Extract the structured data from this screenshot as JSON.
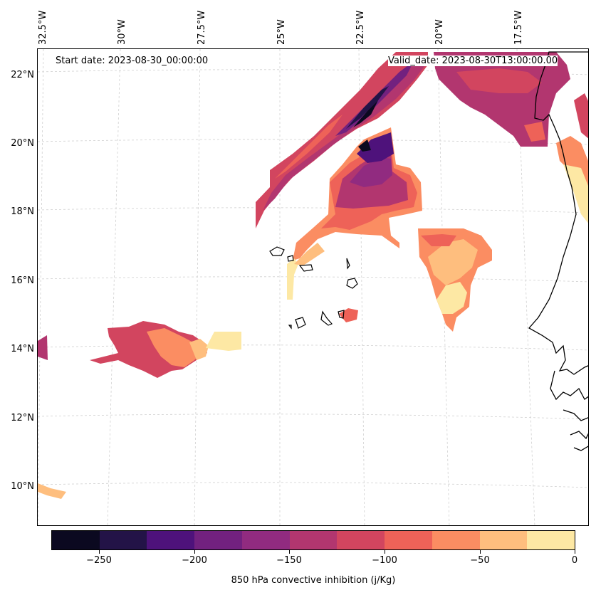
{
  "map": {
    "start_label": "Start date: 2023-08-30_00:00:00",
    "valid_label": "Valid_date: 2023-08-30T13:00:00.00",
    "lon_labels": [
      "32.5°W",
      "30°W",
      "27.5°W",
      "25°W",
      "22.5°W",
      "20°W",
      "17.5°W"
    ],
    "lat_labels": [
      "22°N",
      "20°N",
      "18°N",
      "16°N",
      "14°N",
      "12°N",
      "10°N"
    ],
    "gridlines": "on",
    "coastline_color": "#000000"
  },
  "colorbar": {
    "label": "850 hPa convective inhibition (j/Kg)",
    "tick_labels": [
      "−250",
      "−200",
      "−150",
      "−100",
      "−50",
      "0"
    ],
    "levels": [
      -275,
      -250,
      -225,
      -200,
      -175,
      -150,
      -125,
      -100,
      -75,
      -50,
      -25,
      0
    ],
    "colors": [
      "#0b0920",
      "#231347",
      "#4e127b",
      "#72217f",
      "#912b80",
      "#b2366f",
      "#d2455f",
      "#ee6258",
      "#fb8d62",
      "#febe7e",
      "#fde8a4"
    ]
  }
}
